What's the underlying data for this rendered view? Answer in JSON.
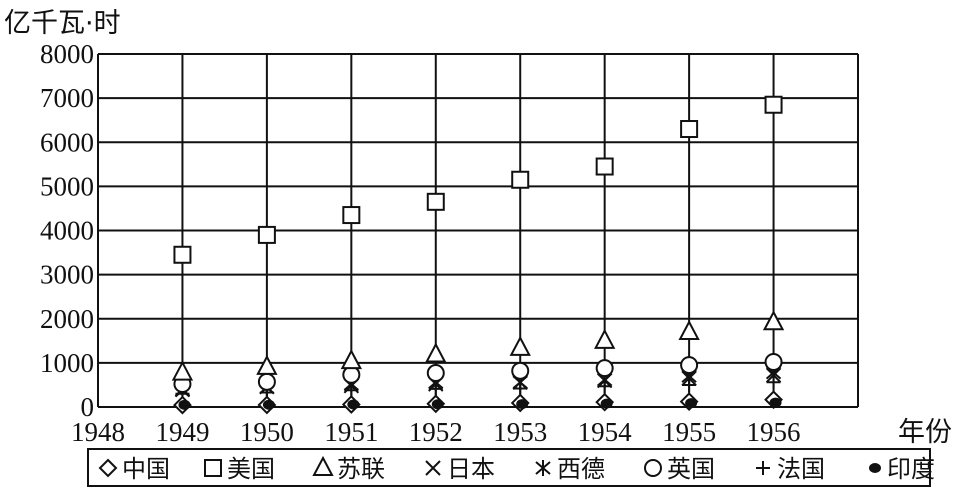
{
  "chart_data": {
    "type": "scatter",
    "ylabel": "亿千瓦·时",
    "xlabel": "年份",
    "x_ticks": [
      "1948",
      "1949",
      "1950",
      "1951",
      "1952",
      "1953",
      "1954",
      "1955",
      "1956"
    ],
    "y_ticks": [
      "0",
      "1000",
      "2000",
      "3000",
      "4000",
      "5000",
      "6000",
      "7000",
      "8000"
    ],
    "xlim": [
      1948,
      1957
    ],
    "ylim": [
      0,
      8000
    ],
    "grid": "horizontal lines every 1000; vertical lines at each year",
    "legend_placement": "bottom",
    "x": [
      1949,
      1950,
      1951,
      1952,
      1953,
      1954,
      1955,
      1956
    ],
    "series": [
      {
        "name": "中国",
        "marker": "diamond",
        "values": [
          43,
          46,
          58,
          73,
          92,
          110,
          123,
          166
        ]
      },
      {
        "name": "美国",
        "marker": "square",
        "values": [
          3450,
          3900,
          4350,
          4650,
          5150,
          5450,
          6300,
          6850
        ]
      },
      {
        "name": "苏联",
        "marker": "triangle",
        "values": [
          780,
          910,
          1040,
          1190,
          1340,
          1500,
          1700,
          1920
        ]
      },
      {
        "name": "日本",
        "marker": "x",
        "values": [
          410,
          460,
          480,
          520,
          560,
          600,
          650,
          720
        ]
      },
      {
        "name": "西德",
        "marker": "asterisk",
        "values": [
          370,
          440,
          520,
          560,
          560,
          620,
          700,
          780
        ]
      },
      {
        "name": "英国",
        "marker": "circle",
        "values": [
          520,
          570,
          730,
          770,
          820,
          880,
          950,
          1020
        ]
      },
      {
        "name": "法国",
        "marker": "plus",
        "values": [
          300,
          330,
          380,
          410,
          420,
          470,
          500,
          560
        ]
      },
      {
        "name": "印度",
        "marker": "filled-circle",
        "values": [
          49,
          51,
          58,
          61,
          66,
          76,
          87,
          100
        ]
      }
    ]
  }
}
